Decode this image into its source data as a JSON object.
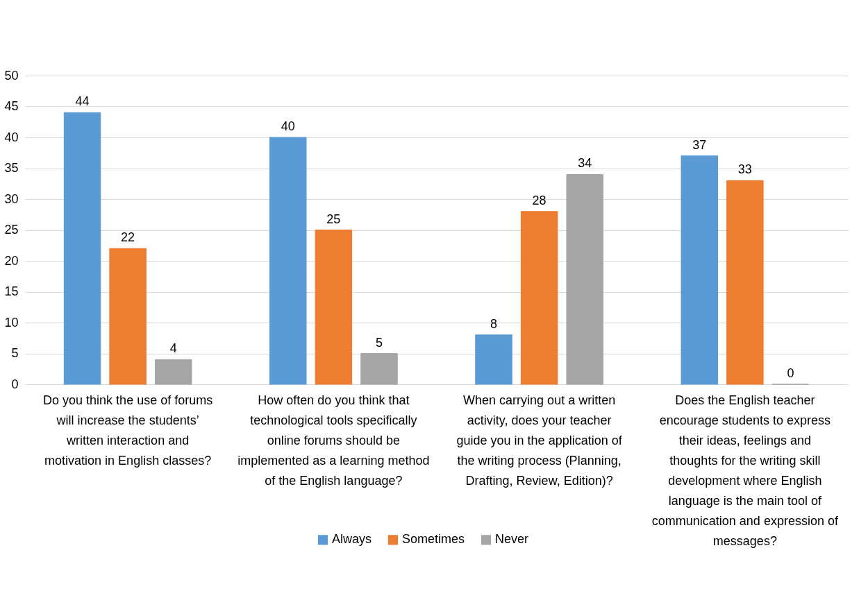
{
  "chart_data": {
    "type": "bar",
    "categories": [
      "Do you think the use of forums will increase the students’ written interaction and motivation in English classes?",
      "How often do you think that technological tools specifically online forums should be implemented as a learning method of the English language?",
      "When carrying out a written activity, does your teacher guide you in the application of the writing process (Planning, Drafting, Review, Edition)?",
      "Does the English teacher encourage students to express their ideas, feelings and thoughts for the writing skill development where English language is the main tool of communication and expression of messages?"
    ],
    "series": [
      {
        "name": "Always",
        "color": "#5b9bd5",
        "values": [
          44,
          40,
          8,
          37
        ]
      },
      {
        "name": "Sometimes",
        "color": "#ed7d31",
        "values": [
          22,
          25,
          28,
          33
        ]
      },
      {
        "name": "Never",
        "color": "#a5a5a5",
        "values": [
          4,
          5,
          34,
          0
        ]
      }
    ],
    "ylim": [
      0,
      50
    ],
    "yticks": [
      0,
      5,
      10,
      15,
      20,
      25,
      30,
      35,
      40,
      45,
      50
    ],
    "grid": "y",
    "legend": "bottom",
    "data_labels": true
  }
}
